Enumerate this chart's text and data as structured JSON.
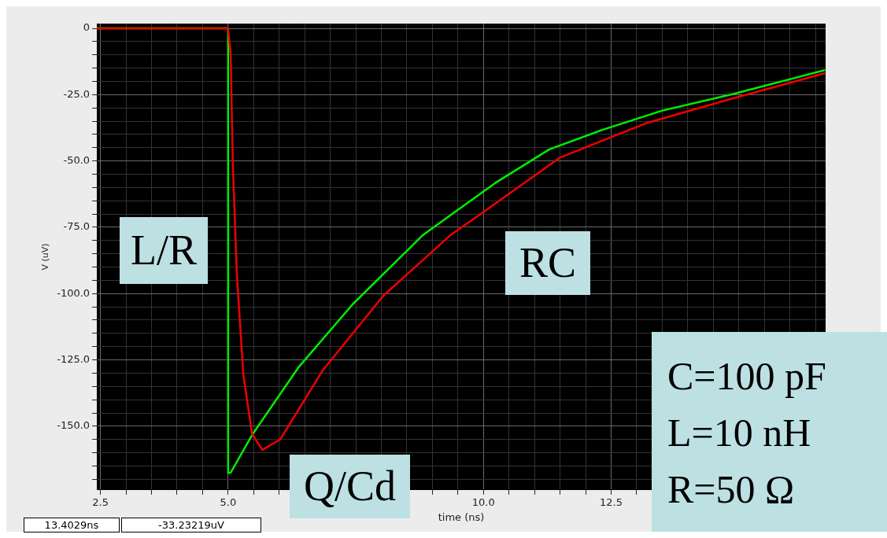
{
  "chart_data": {
    "type": "line",
    "xlabel": "time (ns)",
    "ylabel": "V (uV)",
    "xlim": [
      2.43,
      16.7
    ],
    "ylim": [
      -174,
      1.8
    ],
    "xticks": [
      {
        "value": 2.5,
        "label": "2.5"
      },
      {
        "value": 3.0,
        "label": null
      },
      {
        "value": 3.5,
        "label": null
      },
      {
        "value": 4.0,
        "label": null
      },
      {
        "value": 4.5,
        "label": null
      },
      {
        "value": 5.0,
        "label": "5.0"
      },
      {
        "value": 5.5,
        "label": null
      },
      {
        "value": 6.0,
        "label": null
      },
      {
        "value": 6.5,
        "label": null
      },
      {
        "value": 7.0,
        "label": null
      },
      {
        "value": 7.5,
        "label": null
      },
      {
        "value": 8.0,
        "label": null
      },
      {
        "value": 8.5,
        "label": null
      },
      {
        "value": 9.0,
        "label": null
      },
      {
        "value": 9.5,
        "label": null
      },
      {
        "value": 10.0,
        "label": "10.0"
      },
      {
        "value": 10.5,
        "label": null
      },
      {
        "value": 11.0,
        "label": null
      },
      {
        "value": 11.5,
        "label": null
      },
      {
        "value": 12.0,
        "label": null
      },
      {
        "value": 12.5,
        "label": "12.5"
      },
      {
        "value": 13.0,
        "label": null
      },
      {
        "value": 13.5,
        "label": null
      },
      {
        "value": 14.0,
        "label": null
      },
      {
        "value": 14.5,
        "label": null
      },
      {
        "value": 15.0,
        "label": null
      },
      {
        "value": 15.5,
        "label": null
      },
      {
        "value": 16.0,
        "label": null
      },
      {
        "value": 16.5,
        "label": null
      }
    ],
    "yticks": [
      {
        "value": 0,
        "label": "0"
      },
      {
        "value": -5,
        "label": null
      },
      {
        "value": -10,
        "label": null
      },
      {
        "value": -15,
        "label": null
      },
      {
        "value": -20,
        "label": null
      },
      {
        "value": -25,
        "label": "-25.0"
      },
      {
        "value": -30,
        "label": null
      },
      {
        "value": -35,
        "label": null
      },
      {
        "value": -40,
        "label": null
      },
      {
        "value": -45,
        "label": null
      },
      {
        "value": -50,
        "label": "-50.0"
      },
      {
        "value": -55,
        "label": null
      },
      {
        "value": -60,
        "label": null
      },
      {
        "value": -65,
        "label": null
      },
      {
        "value": -70,
        "label": null
      },
      {
        "value": -75,
        "label": "-75.0"
      },
      {
        "value": -80,
        "label": null
      },
      {
        "value": -85,
        "label": null
      },
      {
        "value": -90,
        "label": null
      },
      {
        "value": -95,
        "label": null
      },
      {
        "value": -100,
        "label": "-100.0"
      },
      {
        "value": -105,
        "label": null
      },
      {
        "value": -110,
        "label": null
      },
      {
        "value": -115,
        "label": null
      },
      {
        "value": -120,
        "label": null
      },
      {
        "value": -125,
        "label": "-125.0"
      },
      {
        "value": -130,
        "label": null
      },
      {
        "value": -135,
        "label": null
      },
      {
        "value": -140,
        "label": null
      },
      {
        "value": -145,
        "label": null
      },
      {
        "value": -150,
        "label": "-150.0"
      },
      {
        "value": -155,
        "label": null
      },
      {
        "value": -160,
        "label": null
      },
      {
        "value": -165,
        "label": null
      },
      {
        "value": -170,
        "label": null
      }
    ],
    "grid": true,
    "marker": "none",
    "line_style": "solid",
    "series": [
      {
        "color": "#00ee00",
        "x": [
          2.43,
          5.0,
          5.0,
          5.05,
          5.48,
          6.37,
          7.44,
          8.81,
          10.23,
          11.29,
          12.34,
          13.5,
          14.86,
          16.69
        ],
        "values": [
          0,
          0,
          -167.7,
          -167.5,
          -153,
          -128,
          -104,
          -78,
          -58.3,
          -45.6,
          -38.2,
          -31,
          -24.9,
          -15.7
        ]
      },
      {
        "color": "#ee0000",
        "x": [
          2.43,
          5.0,
          5.05,
          5.09,
          5.17,
          5.3,
          5.47,
          5.67,
          6.02,
          6.85,
          8.04,
          9.35,
          9.98,
          11.5,
          13.18,
          14.86,
          16.69
        ],
        "values": [
          0,
          0,
          -10,
          -50,
          -92.6,
          -131,
          -153,
          -158.9,
          -155,
          -129,
          -100.8,
          -78,
          -69.5,
          -48.7,
          -35.8,
          -26.5,
          -16.9
        ]
      }
    ],
    "annotations": [
      "L/R",
      "RC",
      "Q/Cd",
      "C=100 pF",
      "L=10 nH",
      "R=50 Ω",
      "13.4029ns",
      "-33.23219uV"
    ]
  }
}
